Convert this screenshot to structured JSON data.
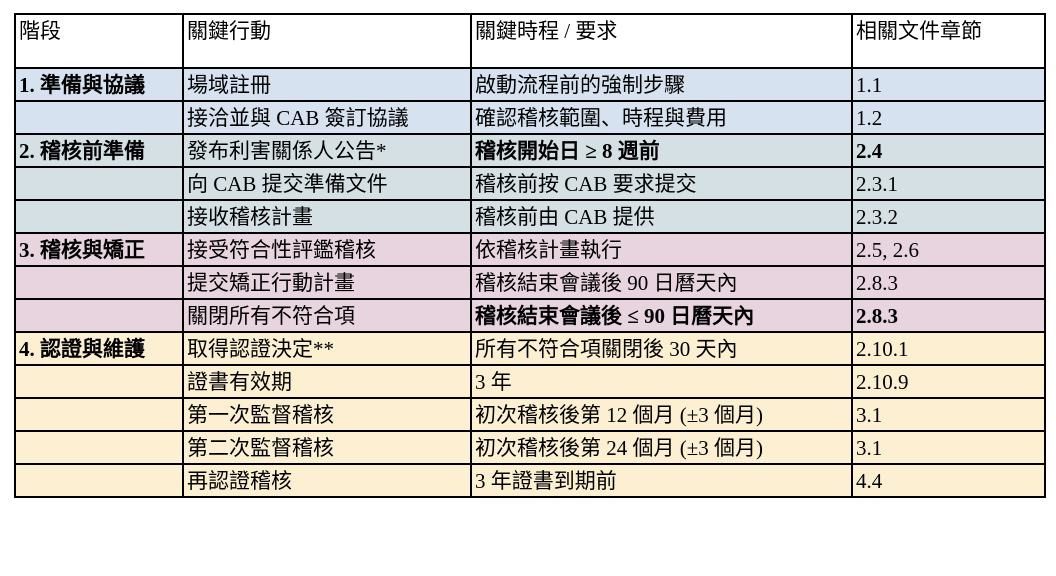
{
  "header": [
    "階段",
    "關鍵行動",
    "關鍵時程 / 要求",
    "相關文件章節"
  ],
  "rows": [
    {
      "phase": "1. 準備與協議",
      "action": "場域註冊",
      "timing": "啟動流程前的強制步驟",
      "section": "1.1",
      "group": "p1",
      "bold_timing": false,
      "bold_section": false
    },
    {
      "phase": "",
      "action": "接洽並與 CAB 簽訂協議",
      "timing": "確認稽核範圍、時程與費用",
      "section": "1.2",
      "group": "p1",
      "bold_timing": false,
      "bold_section": false
    },
    {
      "phase": "2. 稽核前準備",
      "action": "發布利害關係人公告*",
      "timing": "稽核開始日 ≥ 8 週前",
      "section": "2.4",
      "group": "p2",
      "bold_timing": true,
      "bold_section": true
    },
    {
      "phase": "",
      "action": "向 CAB 提交準備文件",
      "timing": "稽核前按 CAB 要求提交",
      "section": "2.3.1",
      "group": "p2",
      "bold_timing": false,
      "bold_section": false
    },
    {
      "phase": "",
      "action": "接收稽核計畫",
      "timing": "稽核前由 CAB 提供",
      "section": "2.3.2",
      "group": "p2",
      "bold_timing": false,
      "bold_section": false
    },
    {
      "phase": "3. 稽核與矯正",
      "action": "接受符合性評鑑稽核",
      "timing": "依稽核計畫執行",
      "section": "2.5, 2.6",
      "group": "p3",
      "bold_timing": false,
      "bold_section": false
    },
    {
      "phase": "",
      "action": "提交矯正行動計畫",
      "timing": "稽核結束會議後 90 日曆天內",
      "section": "2.8.3",
      "group": "p3",
      "bold_timing": false,
      "bold_section": false
    },
    {
      "phase": "",
      "action": "關閉所有不符合項",
      "timing": "稽核結束會議後 ≤ 90 日曆天內",
      "section": "2.8.3",
      "group": "p3",
      "bold_timing": true,
      "bold_section": true
    },
    {
      "phase": "4. 認證與維護",
      "action": "取得認證決定**",
      "timing": "所有不符合項關閉後 30 天內",
      "section": "2.10.1",
      "group": "p4",
      "bold_timing": false,
      "bold_section": false
    },
    {
      "phase": "",
      "action": "證書有效期",
      "timing": "3 年",
      "section": "2.10.9",
      "group": "p4",
      "bold_timing": false,
      "bold_section": false
    },
    {
      "phase": "",
      "action": "第一次監督稽核",
      "timing": "初次稽核後第 12 個月 (±3 個月)",
      "section": "3.1",
      "group": "p4",
      "bold_timing": false,
      "bold_section": false
    },
    {
      "phase": "",
      "action": "第二次監督稽核",
      "timing": "初次稽核後第 24 個月 (±3 個月)",
      "section": "3.1",
      "group": "p4",
      "bold_timing": false,
      "bold_section": false
    },
    {
      "phase": "",
      "action": "再認證稽核",
      "timing": "3 年證書到期前",
      "section": "4.4",
      "group": "p4",
      "bold_timing": false,
      "bold_section": false
    }
  ],
  "colors": {
    "p1": "#d7e2f0",
    "p2": "#d5e0e5",
    "p3": "#e8d4de",
    "p4": "#fcefd2"
  }
}
